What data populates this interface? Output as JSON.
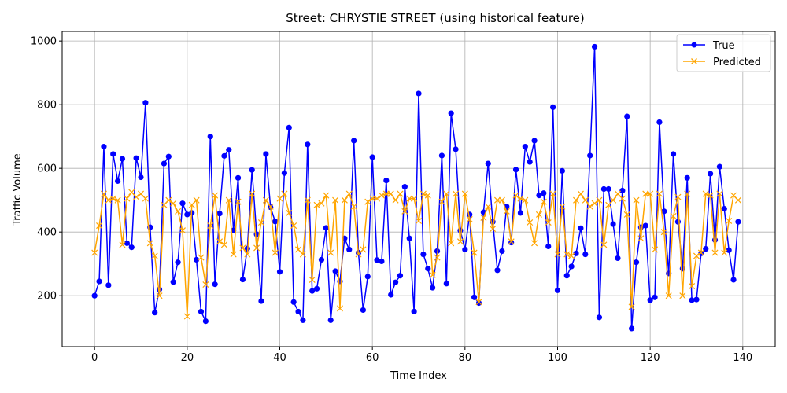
{
  "chart_data": {
    "type": "line",
    "title": "Street: CHRYSTIE STREET (using historical feature)",
    "xlabel": "Time Index",
    "ylabel": "Traffic Volume",
    "xlim": [
      -7,
      147
    ],
    "ylim": [
      40,
      1030
    ],
    "xticks": [
      0,
      20,
      40,
      60,
      80,
      100,
      120,
      140
    ],
    "yticks": [
      200,
      400,
      600,
      800,
      1000
    ],
    "grid": true,
    "legend_position": "upper-right",
    "series": [
      {
        "name": "True",
        "color": "#0000ff",
        "marker": "circle",
        "values": [
          200,
          245,
          668,
          233,
          645,
          560,
          630,
          365,
          352,
          632,
          572,
          806,
          415,
          147,
          220,
          615,
          637,
          243,
          305,
          490,
          455,
          460,
          313,
          150,
          120,
          700,
          236,
          458,
          639,
          658,
          405,
          570,
          251,
          348,
          595,
          393,
          183,
          645,
          478,
          433,
          275,
          585,
          728,
          180,
          150,
          123,
          675,
          215,
          222,
          313,
          413,
          123,
          277,
          245,
          380,
          345,
          687,
          335,
          155,
          260,
          635,
          312,
          308,
          562,
          203,
          242,
          263,
          542,
          380,
          150,
          835,
          330,
          285,
          225,
          340,
          640,
          238,
          773,
          660,
          405,
          345,
          455,
          195,
          177,
          462,
          615,
          432,
          280,
          340,
          480,
          367,
          596,
          460,
          668,
          620,
          687,
          515,
          522,
          355,
          792,
          217,
          592,
          263,
          292,
          333,
          412,
          330,
          640,
          982,
          132,
          535,
          535,
          425,
          318,
          530,
          763,
          97,
          305,
          415,
          420,
          186,
          195,
          745,
          465,
          270,
          645,
          432,
          285,
          570,
          186,
          188,
          333,
          347,
          583,
          375,
          605,
          473,
          343,
          250,
          432
        ]
      },
      {
        "name": "Predicted",
        "color": "#ffa500",
        "marker": "x",
        "values": [
          335,
          420,
          520,
          500,
          505,
          500,
          360,
          505,
          525,
          510,
          520,
          505,
          365,
          325,
          200,
          485,
          500,
          490,
          465,
          405,
          135,
          485,
          500,
          320,
          235,
          420,
          515,
          370,
          360,
          500,
          330,
          495,
          350,
          330,
          520,
          350,
          430,
          500,
          480,
          335,
          505,
          520,
          460,
          420,
          345,
          330,
          500,
          250,
          485,
          490,
          515,
          335,
          500,
          160,
          500,
          520,
          480,
          330,
          345,
          495,
          505,
          505,
          515,
          520,
          520,
          500,
          520,
          465,
          505,
          505,
          435,
          520,
          515,
          265,
          320,
          495,
          520,
          365,
          520,
          370,
          520,
          440,
          335,
          180,
          445,
          480,
          410,
          500,
          500,
          465,
          370,
          515,
          505,
          500,
          430,
          365,
          455,
          495,
          430,
          520,
          330,
          480,
          330,
          325,
          500,
          520,
          500,
          480,
          490,
          500,
          360,
          485,
          500,
          520,
          505,
          455,
          165,
          500,
          380,
          520,
          520,
          345,
          520,
          400,
          200,
          450,
          510,
          200,
          520,
          230,
          325,
          335,
          520,
          515,
          335,
          520,
          335,
          435,
          515,
          500
        ]
      }
    ]
  }
}
